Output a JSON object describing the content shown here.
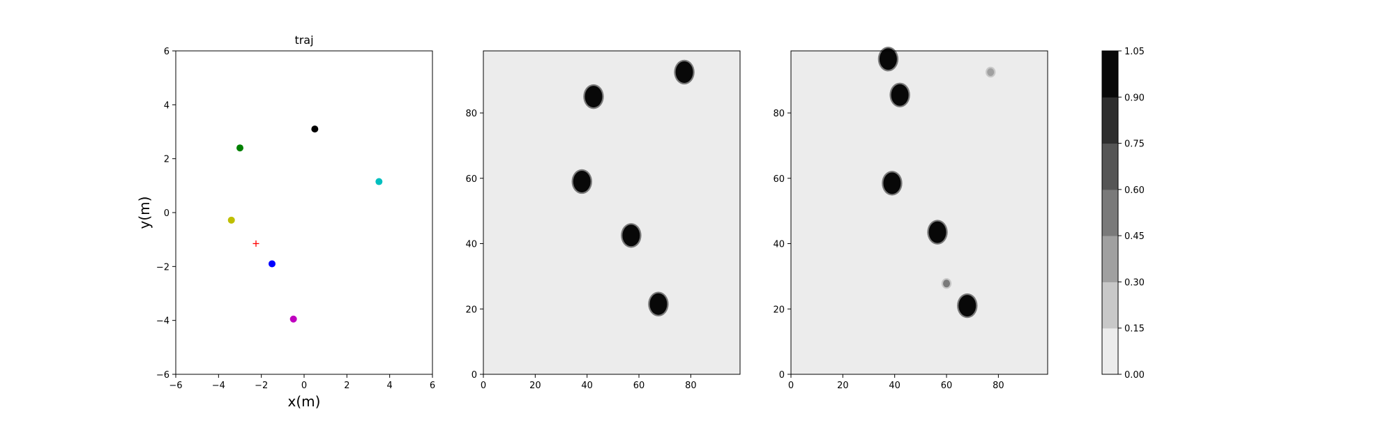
{
  "chart_data": [
    {
      "type": "scatter",
      "title": "traj",
      "xlabel": "x(m)",
      "ylabel": "y(m)",
      "xlim": [
        -6,
        6
      ],
      "ylim": [
        -6,
        6
      ],
      "xticks": [
        "−6",
        "−4",
        "−2",
        "0",
        "2",
        "4",
        "6"
      ],
      "yticks": [
        "−6",
        "−4",
        "−2",
        "0",
        "2",
        "4",
        "6"
      ],
      "series": [
        {
          "color": "#008000",
          "marker": "dot",
          "x": [
            -3.0
          ],
          "y": [
            2.4
          ]
        },
        {
          "color": "#000000",
          "marker": "dot",
          "x": [
            0.5
          ],
          "y": [
            3.1
          ]
        },
        {
          "color": "#00bfbf",
          "marker": "dot",
          "x": [
            3.5
          ],
          "y": [
            1.15
          ]
        },
        {
          "color": "#bfbf00",
          "marker": "dot",
          "x": [
            -3.4
          ],
          "y": [
            -0.28
          ]
        },
        {
          "color": "#0000ff",
          "marker": "dot",
          "x": [
            -1.5
          ],
          "y": [
            -1.9
          ]
        },
        {
          "color": "#bf00bf",
          "marker": "dot",
          "x": [
            -0.5
          ],
          "y": [
            -3.95
          ]
        },
        {
          "color": "#ff0000",
          "marker": "plus",
          "x": [
            -2.25
          ],
          "y": [
            -1.15
          ]
        }
      ]
    },
    {
      "type": "heatmap",
      "xlim": [
        0,
        99
      ],
      "ylim": [
        0,
        99
      ],
      "xticks": [
        "0",
        "20",
        "40",
        "60",
        "80"
      ],
      "yticks": [
        "0",
        "20",
        "40",
        "60",
        "80"
      ],
      "background_value": 0.0,
      "blobs": [
        {
          "x": 42.5,
          "y": 85,
          "value": 1.0
        },
        {
          "x": 77.5,
          "y": 92.5,
          "value": 1.0
        },
        {
          "x": 38,
          "y": 59,
          "value": 1.0
        },
        {
          "x": 57,
          "y": 42.5,
          "value": 1.0
        },
        {
          "x": 67.5,
          "y": 21.5,
          "value": 1.0
        }
      ]
    },
    {
      "type": "heatmap",
      "xlim": [
        0,
        99
      ],
      "ylim": [
        0,
        99
      ],
      "xticks": [
        "0",
        "20",
        "40",
        "60",
        "80"
      ],
      "yticks": [
        "0",
        "20",
        "40",
        "60",
        "80"
      ],
      "background_value": 0.0,
      "blobs": [
        {
          "x": 37.5,
          "y": 96.5,
          "value": 1.0
        },
        {
          "x": 42,
          "y": 85.5,
          "value": 1.0
        },
        {
          "x": 77,
          "y": 92.5,
          "value": 0.4
        },
        {
          "x": 39,
          "y": 58.5,
          "value": 1.0
        },
        {
          "x": 56.5,
          "y": 43.5,
          "value": 1.0
        },
        {
          "x": 60,
          "y": 27.8,
          "value": 0.45
        },
        {
          "x": 68,
          "y": 21,
          "value": 1.0
        }
      ]
    }
  ],
  "colorbar": {
    "levels": [
      "0.00",
      "0.15",
      "0.30",
      "0.45",
      "0.60",
      "0.75",
      "0.90",
      "1.05"
    ],
    "colors": [
      "#ececec",
      "#c8c8c8",
      "#a0a0a0",
      "#7a7a7a",
      "#555555",
      "#2e2e2e",
      "#080808"
    ]
  }
}
